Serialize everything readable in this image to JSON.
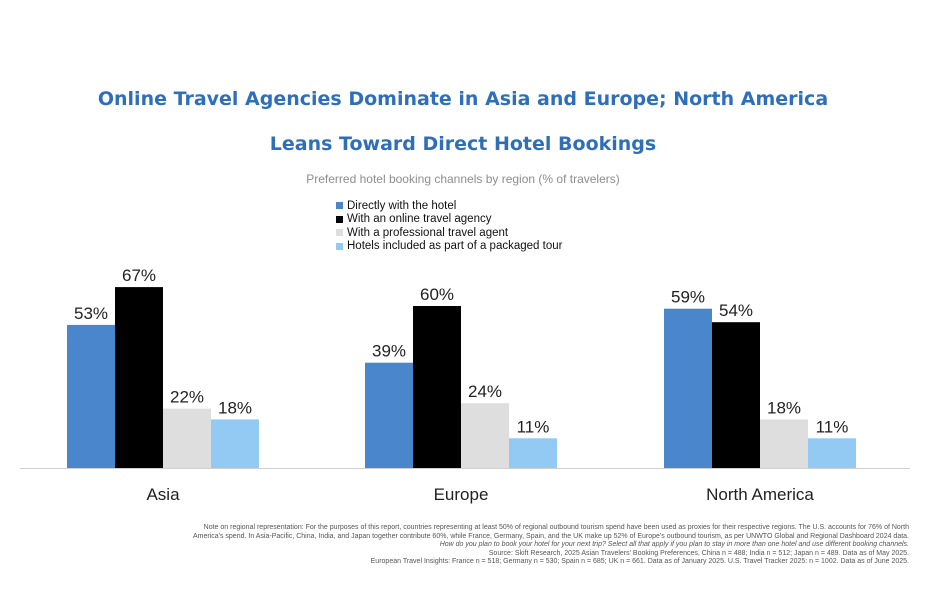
{
  "chart_data": {
    "type": "bar",
    "title_line1": "Online Travel Agencies Dominate in Asia and Europe; North America",
    "title_line2": "Leans Toward Direct Hotel Bookings",
    "subtitle": "Preferred hotel booking channels by region (% of travelers)",
    "categories": [
      "Asia",
      "Europe",
      "North America"
    ],
    "series": [
      {
        "name": "Directly with the hotel",
        "color": "#4a86cc",
        "values": [
          53,
          39,
          59
        ]
      },
      {
        "name": "With an online travel agency",
        "color": "#000000",
        "values": [
          67,
          60,
          54
        ]
      },
      {
        "name": "With a professional travel agent",
        "color": "#dedede",
        "values": [
          22,
          24,
          18
        ]
      },
      {
        "name": "Hotels included as part of a packaged tour",
        "color": "#93caf3",
        "values": [
          18,
          11,
          11
        ]
      }
    ],
    "value_suffix": "%",
    "ylim": [
      0,
      100
    ],
    "legend_position": "top-center",
    "grid": false
  },
  "notes": {
    "line1": "Note on regional representation: For the purposes of this report, countries representing at least 50% of regional outbound tourism spend have been used as proxies for their respective regions. The U.S. accounts for 76% of North",
    "line2": "America's spend. In Asia-Pacific, China, India, and Japan together contribute 60%, while France, Germany, Spain, and the UK make up 52% of Europe's outbound tourism, as per UNWTO Global and Regional Dashboard 2024 data.",
    "line3": "How do you plan to book your hotel for your next trip? Select all that apply if you plan to stay in more than one hotel and use different booking channels.",
    "line4": "Source: Skift Research, 2025 Asian Travelers' Booking Preferences, China n = 488; India n = 512; Japan n = 489. Data as of May 2025.",
    "line5": "European Travel Insights: France n = 518; Germany n = 530; Spain n = 685; UK n = 661. Data as of January 2025. U.S. Travel Tracker 2025: n = 1002. Data as of June 2025."
  }
}
